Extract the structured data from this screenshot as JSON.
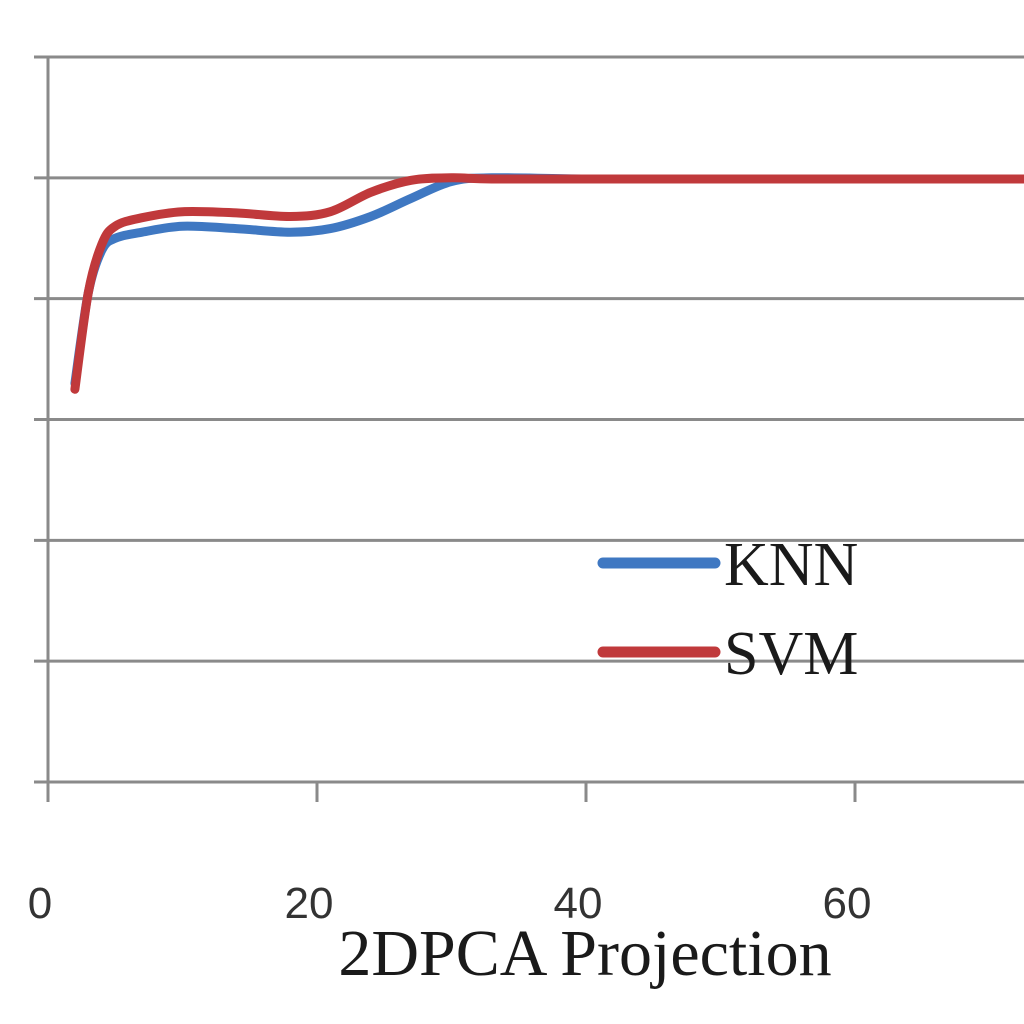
{
  "chart_data": {
    "type": "line",
    "xlabel": "2DPCA Projection",
    "ylabel": "",
    "xticks": [
      0,
      20,
      40,
      60
    ],
    "xlim": [
      0,
      73
    ],
    "ylim": [
      0,
      6
    ],
    "y_gridlines": [
      0,
      1,
      2,
      3,
      4,
      5,
      6
    ],
    "grid": true,
    "legend_position": "right-lower-middle",
    "series": [
      {
        "name": "KNN",
        "color": "#3f78c2",
        "x": [
          2,
          3,
          4,
          5,
          7,
          10,
          14,
          18,
          21,
          24,
          27,
          30,
          33,
          40,
          50,
          60,
          73
        ],
        "y": [
          3.3,
          4.05,
          4.4,
          4.5,
          4.55,
          4.6,
          4.58,
          4.55,
          4.58,
          4.68,
          4.83,
          4.97,
          5.0,
          4.99,
          4.99,
          4.99,
          4.99
        ]
      },
      {
        "name": "SVM",
        "color": "#c0393b",
        "x": [
          2,
          3,
          4,
          5,
          7,
          10,
          14,
          18,
          21,
          24,
          27,
          30,
          33,
          40,
          50,
          60,
          73
        ],
        "y": [
          3.25,
          4.05,
          4.45,
          4.6,
          4.67,
          4.72,
          4.71,
          4.68,
          4.72,
          4.88,
          4.98,
          5.0,
          4.99,
          4.99,
          4.99,
          4.99,
          4.99
        ]
      }
    ]
  }
}
